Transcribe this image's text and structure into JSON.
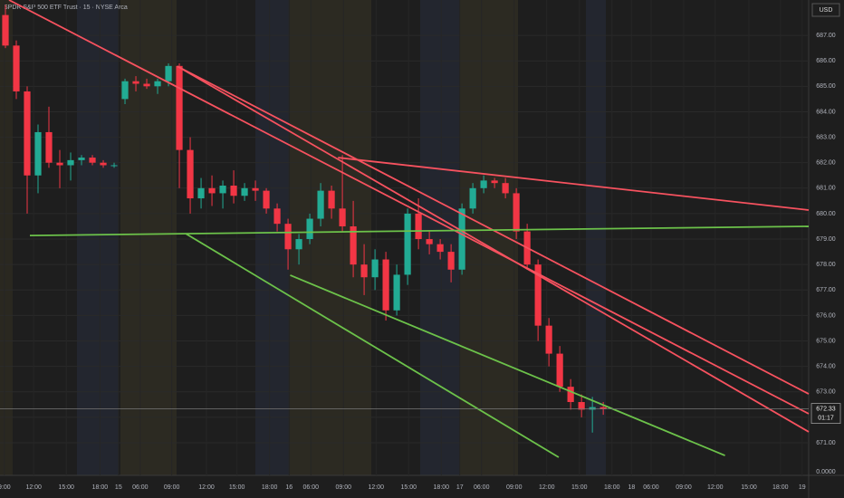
{
  "chart_data": {
    "type": "candlestick",
    "title": "SPDR S&P 500 ETF Trust · 15 · NYSE Arca",
    "currency": "USD",
    "up_color": "#22ab94",
    "down_color": "#f23645",
    "xlim": [
      -0.5,
      73.9
    ],
    "ylim": [
      669.72,
      688.39
    ],
    "xticks": [
      {
        "value": -0.1,
        "label": "9:00"
      },
      {
        "value": 2.6,
        "label": "12:00"
      },
      {
        "value": 5.6,
        "label": "15:00"
      },
      {
        "value": 8.7,
        "label": "18:00"
      },
      {
        "value": 10.4,
        "label": "15"
      },
      {
        "value": 12.4,
        "label": "06:00"
      },
      {
        "value": 15.3,
        "label": "09:00"
      },
      {
        "value": 18.5,
        "label": "12:00"
      },
      {
        "value": 21.3,
        "label": "15:00"
      },
      {
        "value": 24.3,
        "label": "18:00"
      },
      {
        "value": 26.1,
        "label": "16"
      },
      {
        "value": 28.1,
        "label": "06:00"
      },
      {
        "value": 31.1,
        "label": "09:00"
      },
      {
        "value": 34.1,
        "label": "12:00"
      },
      {
        "value": 37.1,
        "label": "15:00"
      },
      {
        "value": 40.1,
        "label": "18:00"
      },
      {
        "value": 41.8,
        "label": "17"
      },
      {
        "value": 43.8,
        "label": "06:00"
      },
      {
        "value": 46.8,
        "label": "09:00"
      },
      {
        "value": 49.8,
        "label": "12:00"
      },
      {
        "value": 52.8,
        "label": "15:00"
      },
      {
        "value": 55.8,
        "label": "18:00"
      },
      {
        "value": 57.6,
        "label": "18"
      },
      {
        "value": 59.4,
        "label": "06:00"
      },
      {
        "value": 62.4,
        "label": "09:00"
      },
      {
        "value": 65.3,
        "label": "12:00"
      },
      {
        "value": 68.4,
        "label": "15:00"
      },
      {
        "value": 71.3,
        "label": "18:00"
      },
      {
        "value": 73.3,
        "label": "19"
      }
    ],
    "yticks": [
      {
        "value": 687,
        "label": "687.00"
      },
      {
        "value": 686,
        "label": "686.00"
      },
      {
        "value": 685,
        "label": "685.00"
      },
      {
        "value": 684,
        "label": "684.00"
      },
      {
        "value": 683,
        "label": "683.00"
      },
      {
        "value": 682,
        "label": "682.00"
      },
      {
        "value": 681,
        "label": "681.00"
      },
      {
        "value": 680,
        "label": "680.00"
      },
      {
        "value": 679,
        "label": "679.00"
      },
      {
        "value": 678,
        "label": "678.00"
      },
      {
        "value": 677,
        "label": "677.00"
      },
      {
        "value": 676,
        "label": "676.00"
      },
      {
        "value": 675,
        "label": "675.00"
      },
      {
        "value": 674,
        "label": "674.00"
      },
      {
        "value": 673,
        "label": "673.00"
      },
      {
        "value": 672,
        "label": "672.00"
      },
      {
        "value": 671,
        "label": "671.00"
      }
    ],
    "last_price": {
      "value": 672.33,
      "label": "672.33"
    },
    "countdown": "01:17",
    "corner_label": "0.0000",
    "open": [
      687.8,
      686.6,
      684.8,
      681.5,
      683.2,
      682.0,
      681.9,
      682.1,
      682.2,
      682.0,
      681.9,
      684.5,
      685.2,
      685.1,
      685.0,
      685.2,
      685.8,
      682.5,
      680.6,
      681.0,
      680.8,
      681.1,
      680.7,
      681.0,
      680.9,
      680.2,
      679.6,
      678.6,
      679.0,
      679.8,
      680.9,
      680.2,
      679.5,
      678.0,
      677.5,
      678.2,
      676.2,
      677.6,
      680.0,
      679.0,
      678.8,
      678.5,
      677.8,
      680.2,
      681.0,
      681.3,
      681.2,
      680.8,
      679.3,
      678.0,
      675.6,
      674.5,
      673.2,
      672.6,
      672.3,
      672.4
    ],
    "high": [
      688.2,
      686.8,
      685.0,
      683.5,
      684.2,
      682.5,
      682.4,
      682.3,
      682.3,
      682.1,
      682.0,
      685.3,
      685.4,
      685.3,
      685.3,
      685.9,
      685.9,
      683.0,
      681.4,
      681.5,
      681.3,
      681.7,
      681.2,
      681.3,
      681.0,
      680.4,
      679.8,
      679.2,
      680.0,
      681.2,
      681.1,
      682.3,
      680.5,
      678.8,
      678.6,
      678.5,
      678.0,
      680.2,
      680.6,
      679.3,
      679.0,
      678.8,
      680.4,
      681.2,
      681.5,
      681.4,
      681.4,
      681.0,
      679.6,
      678.2,
      675.9,
      674.8,
      673.5,
      672.9,
      672.8,
      672.6
    ],
    "low": [
      686.5,
      684.5,
      680.0,
      680.8,
      681.8,
      681.0,
      681.3,
      681.9,
      681.9,
      681.8,
      681.8,
      684.3,
      684.8,
      684.9,
      684.7,
      685.0,
      681.0,
      680.0,
      680.2,
      680.3,
      680.2,
      680.4,
      680.5,
      680.5,
      680.0,
      679.3,
      677.8,
      678.0,
      678.8,
      679.5,
      679.8,
      679.3,
      677.5,
      676.8,
      677.0,
      675.8,
      676.0,
      677.2,
      678.6,
      678.4,
      678.2,
      677.3,
      677.6,
      680.0,
      680.8,
      681.0,
      680.6,
      679.0,
      677.8,
      675.0,
      674.0,
      673.0,
      672.3,
      672.0,
      671.4,
      672.1
    ],
    "close": [
      686.6,
      684.8,
      681.5,
      683.2,
      682.0,
      681.9,
      682.1,
      682.2,
      682.0,
      681.9,
      681.9,
      685.2,
      685.1,
      685.0,
      685.2,
      685.8,
      682.5,
      680.6,
      681.0,
      680.8,
      681.1,
      680.7,
      681.0,
      680.9,
      680.2,
      679.6,
      678.6,
      679.0,
      679.8,
      680.9,
      680.2,
      679.5,
      678.0,
      677.5,
      678.2,
      676.2,
      677.6,
      680.0,
      679.0,
      678.8,
      678.5,
      677.8,
      680.2,
      681.0,
      681.3,
      681.2,
      680.8,
      679.3,
      678.0,
      675.6,
      674.5,
      673.2,
      672.6,
      672.3,
      672.4,
      672.33
    ],
    "trendlines": [
      {
        "color": "#f7525f",
        "x": [
          0.33,
          73.9
        ],
        "y": [
          688.39,
          672.14
        ]
      },
      {
        "color": "#f7525f",
        "x": [
          15.8,
          73.9
        ],
        "y": [
          685.79,
          672.92
        ]
      },
      {
        "color": "#f7525f",
        "x": [
          15.8,
          73.9
        ],
        "y": [
          685.79,
          671.43
        ]
      },
      {
        "color": "#f7525f",
        "x": [
          30.6,
          73.9
        ],
        "y": [
          682.2,
          680.14
        ]
      },
      {
        "color": "#6cc24a",
        "x": [
          2.25,
          73.9
        ],
        "y": [
          679.14,
          679.5
        ]
      },
      {
        "color": "#6cc24a",
        "x": [
          16.6,
          50.9
        ],
        "y": [
          679.21,
          670.43
        ]
      },
      {
        "color": "#6cc24a",
        "x": [
          26.2,
          66.2
        ],
        "y": [
          677.58,
          670.5
        ]
      }
    ]
  }
}
